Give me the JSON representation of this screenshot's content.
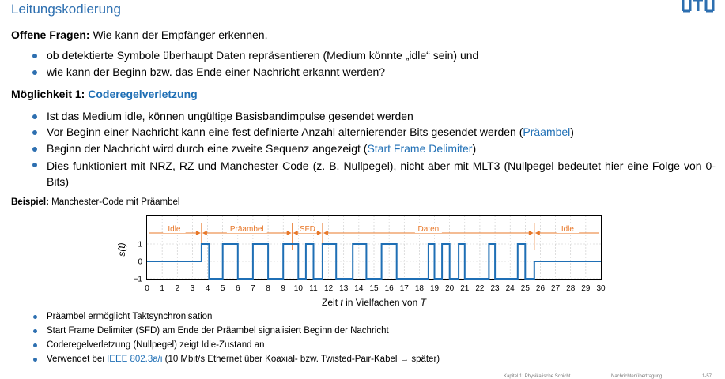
{
  "slide": {
    "title": "Leitungskodierung",
    "q_label": "Offene Fragen:",
    "q_text": " Wie kann der Empfänger erkennen,",
    "q_items": [
      "ob detektierte Symbole überhaupt Daten repräsentieren (Medium könnte „idle“ sein) und",
      "wie kann der Beginn bzw. das Ende einer Nachricht erkannt werden?"
    ],
    "m_label": "Möglichkeit 1: ",
    "m_title": "Coderegelverletzung",
    "b1": "Ist das Medium idle, können ungültige Basisbandimpulse gesendet werden",
    "b2_pre": "Vor Beginn einer Nachricht kann eine fest definierte Anzahl alternierender Bits gesendet werden (",
    "b2_link": "Präambel",
    "b2_post": ")",
    "b3_pre": "Beginn der Nachricht wird durch eine zweite Sequenz angezeigt (",
    "b3_link": "Start Frame Delimiter",
    "b3_post": ")",
    "b4": "Dies funktioniert mit NRZ, RZ und Manchester Code (z. B. Nullpegel), nicht aber mit MLT3 (Nullpegel bedeutet hier eine Folge von 0-Bits)",
    "ex_label": "Beispiel:",
    "ex_text": " Manchester-Code mit Präambel",
    "notes": [
      "Präambel ermöglicht Taktsynchronisation",
      "Start Frame Delimiter (SFD) am Ende der Präambel signalisiert Beginn der Nachricht",
      "Coderegelverletzung (Nullpegel) zeigt Idle-Zustand an"
    ],
    "n4_pre": "Verwendet bei ",
    "n4_link": "IEEE 802.3a/i",
    "n4_post": " (10 Mbit/s Ethernet über Koaxial- bzw. Twisted-Pair-Kabel → später)",
    "footer_left": "Kapitel 1: Physikalische Schicht",
    "footer_mid": "Nachrichtenübertragung",
    "footer_page": "1-57"
  },
  "chart_data": {
    "type": "line",
    "ylabel": "s(t)",
    "xlabel_pre": "Zeit ",
    "xlabel_var": "t",
    "xlabel_mid": " in Vielfachen von ",
    "xlabel_unit": "T",
    "xlim": [
      0,
      30
    ],
    "ylim": [
      -1,
      1
    ],
    "xticks": [
      "0",
      "1",
      "2",
      "3",
      "4",
      "5",
      "6",
      "7",
      "8",
      "9",
      "10",
      "11",
      "12",
      "13",
      "14",
      "15",
      "16",
      "17",
      "18",
      "19",
      "20",
      "21",
      "22",
      "23",
      "24",
      "25",
      "26",
      "27",
      "28",
      "29",
      "30"
    ],
    "yticks": [
      "1",
      "0",
      "−1"
    ],
    "segments": [
      {
        "label": "Idle",
        "from": 0,
        "to": 3.6
      },
      {
        "label": "Präambel",
        "from": 3.6,
        "to": 9.6
      },
      {
        "label": "SFD",
        "from": 9.6,
        "to": 11.6
      },
      {
        "label": "Daten",
        "from": 11.6,
        "to": 25.6
      },
      {
        "label": "Idle",
        "from": 25.6,
        "to": 30
      }
    ],
    "signal": [
      [
        0,
        0
      ],
      [
        3.6,
        0
      ],
      [
        3.6,
        1
      ],
      [
        4.1,
        1
      ],
      [
        4.1,
        -1
      ],
      [
        5,
        -1
      ],
      [
        5,
        1
      ],
      [
        6,
        1
      ],
      [
        6,
        -1
      ],
      [
        7,
        -1
      ],
      [
        7,
        1
      ],
      [
        8,
        1
      ],
      [
        8,
        -1
      ],
      [
        9,
        -1
      ],
      [
        9,
        1
      ],
      [
        10,
        1
      ],
      [
        10,
        -1
      ],
      [
        10.5,
        -1
      ],
      [
        10.5,
        1
      ],
      [
        11,
        1
      ],
      [
        11,
        -1
      ],
      [
        11.6,
        -1
      ],
      [
        11.6,
        1
      ],
      [
        12.5,
        1
      ],
      [
        12.5,
        -1
      ],
      [
        13.6,
        -1
      ],
      [
        13.6,
        1
      ],
      [
        14.5,
        1
      ],
      [
        14.5,
        -1
      ],
      [
        15.5,
        -1
      ],
      [
        15.5,
        1
      ],
      [
        16.5,
        1
      ],
      [
        16.5,
        -1
      ],
      [
        18.6,
        -1
      ],
      [
        18.6,
        1
      ],
      [
        19,
        1
      ],
      [
        19,
        -1
      ],
      [
        19.5,
        -1
      ],
      [
        19.5,
        1
      ],
      [
        20,
        1
      ],
      [
        20,
        -1
      ],
      [
        20.6,
        -1
      ],
      [
        20.6,
        1
      ],
      [
        21,
        1
      ],
      [
        21,
        -1
      ],
      [
        22.6,
        -1
      ],
      [
        22.6,
        1
      ],
      [
        23,
        1
      ],
      [
        23,
        -1
      ],
      [
        24.5,
        -1
      ],
      [
        24.5,
        1
      ],
      [
        25,
        1
      ],
      [
        25,
        -1
      ],
      [
        25.6,
        -1
      ],
      [
        25.6,
        0
      ],
      [
        30,
        0
      ]
    ],
    "colors": {
      "signal": "#1f6fb5",
      "annotation": "#e8782a",
      "grid": "#c8c8c8"
    }
  }
}
